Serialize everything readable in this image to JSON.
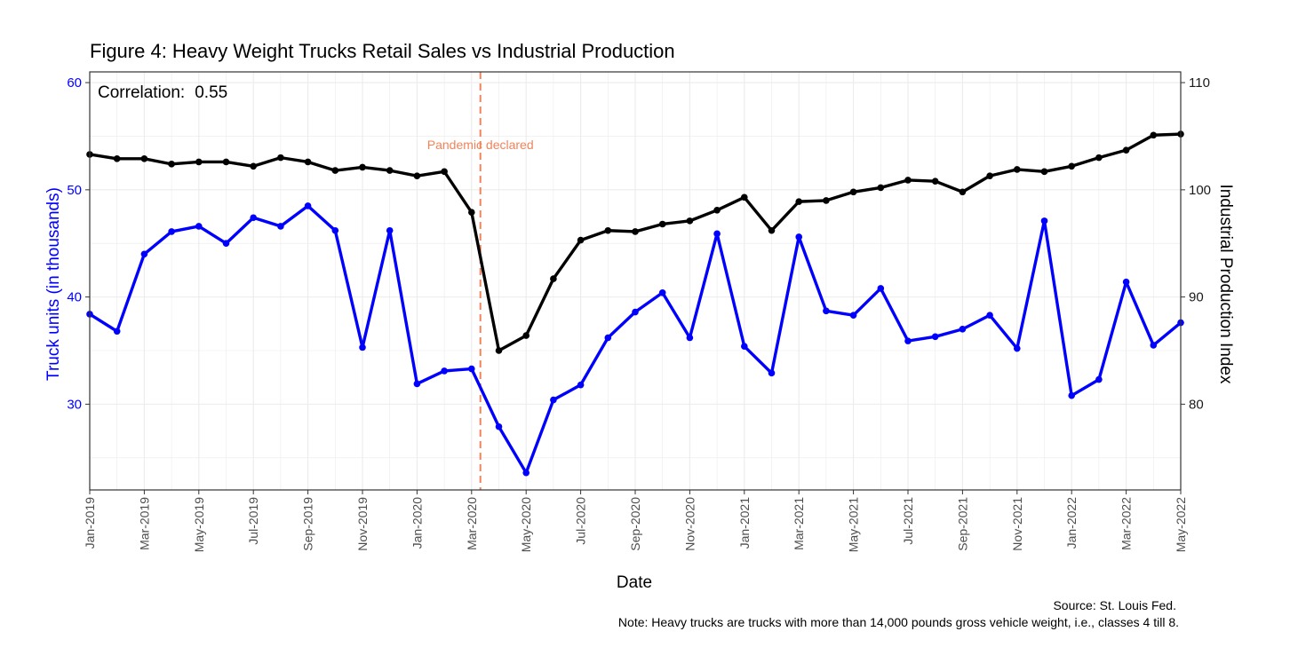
{
  "chart_data": {
    "type": "line",
    "title": "Figure 4: Heavy Weight Trucks Retail Sales vs Industrial Production",
    "xlabel": "Date",
    "ylabel_left": "Truck units (in thousands)",
    "ylabel_right": "Industrial Production Index",
    "x": [
      "2019-01",
      "2019-02",
      "2019-03",
      "2019-04",
      "2019-05",
      "2019-06",
      "2019-07",
      "2019-08",
      "2019-09",
      "2019-10",
      "2019-11",
      "2019-12",
      "2020-01",
      "2020-02",
      "2020-03",
      "2020-04",
      "2020-05",
      "2020-06",
      "2020-07",
      "2020-08",
      "2020-09",
      "2020-10",
      "2020-11",
      "2020-12",
      "2021-01",
      "2021-02",
      "2021-03",
      "2021-04",
      "2021-05",
      "2021-06",
      "2021-07",
      "2021-08",
      "2021-09",
      "2021-10",
      "2021-11",
      "2021-12",
      "2022-01",
      "2022-02",
      "2022-03",
      "2022-04",
      "2022-05"
    ],
    "x_tick_labels": [
      "Jan-2019",
      "Mar-2019",
      "May-2019",
      "Jul-2019",
      "Sep-2019",
      "Nov-2019",
      "Jan-2020",
      "Mar-2020",
      "May-2020",
      "Jul-2020",
      "Sep-2020",
      "Nov-2020",
      "Jan-2021",
      "Mar-2021",
      "May-2021",
      "Jul-2021",
      "Sep-2021",
      "Nov-2021",
      "Jan-2022",
      "Mar-2022",
      "May-2022"
    ],
    "y_left_ticks": [
      30,
      40,
      50,
      60
    ],
    "y_right_ticks": [
      80,
      90,
      100,
      110
    ],
    "ylim_left": [
      22,
      61
    ],
    "ylim_right": [
      72,
      111
    ],
    "grid": true,
    "series": [
      {
        "axis": "left",
        "color": "#0000ff",
        "values": [
          38.4,
          36.8,
          44.0,
          46.1,
          46.6,
          45.0,
          47.4,
          46.6,
          48.5,
          46.2,
          35.3,
          46.2,
          31.9,
          33.1,
          33.3,
          27.9,
          23.6,
          30.4,
          31.8,
          36.2,
          38.6,
          40.4,
          36.2,
          45.9,
          35.4,
          32.9,
          45.6,
          38.7,
          38.3,
          40.8,
          35.9,
          36.3,
          37.0,
          38.3,
          35.2,
          47.1,
          30.8,
          32.3,
          41.4,
          35.5,
          37.6
        ]
      },
      {
        "axis": "right",
        "color": "#000000",
        "values": [
          103.3,
          102.9,
          102.9,
          102.4,
          102.6,
          102.6,
          102.2,
          103.0,
          102.6,
          101.8,
          102.1,
          101.8,
          101.3,
          101.7,
          97.9,
          85.0,
          86.4,
          91.7,
          95.3,
          96.2,
          96.1,
          96.8,
          97.1,
          98.1,
          99.3,
          96.2,
          98.9,
          99.0,
          99.8,
          100.2,
          100.9,
          100.8,
          99.8,
          101.3,
          101.9,
          101.7,
          102.2,
          103.0,
          103.7,
          105.1,
          105.2
        ]
      }
    ],
    "annotations": {
      "correlation_label": "Correlation:",
      "correlation_value": "0.55",
      "event_label": "Pandemic declared",
      "event_date": "2020-03-11",
      "event_color": "#f0845a"
    },
    "source": "Source: St. Louis Fed.",
    "note": "Note: Heavy trucks are trucks with more than 14,000 pounds gross vehicle weight, i.e., classes 4 till 8."
  }
}
